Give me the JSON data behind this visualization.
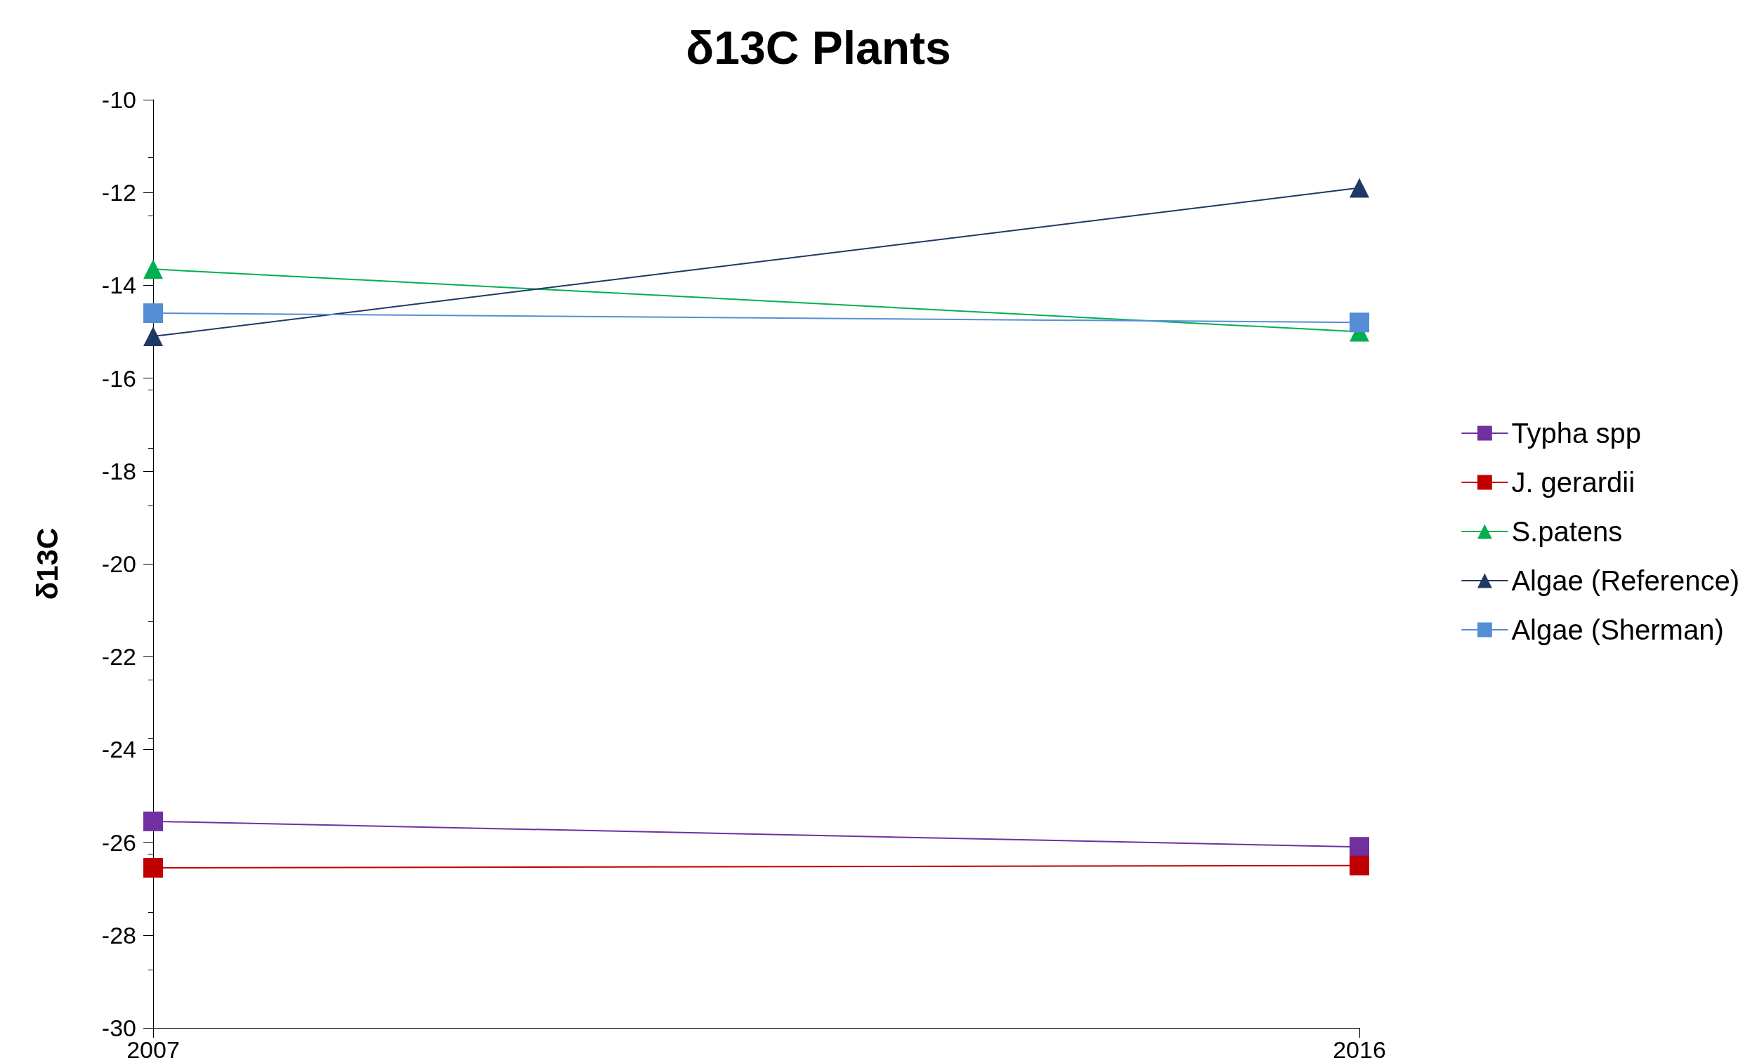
{
  "chart_data": {
    "type": "line",
    "title": "δ13C Plants",
    "ylabel": "δ13C",
    "x": [
      2007,
      2016
    ],
    "xlim": [
      2007,
      2016
    ],
    "xticks": [
      2007,
      2016
    ],
    "series": [
      {
        "name": "Typha spp",
        "color": "#7030a0",
        "marker": "square",
        "values": [
          -25.55,
          -26.1
        ]
      },
      {
        "name": "J. gerardii",
        "color": "#c00000",
        "marker": "square",
        "values": [
          -26.55,
          -26.5
        ]
      },
      {
        "name": "S.patens",
        "color": "#00b050",
        "marker": "triangle",
        "values": [
          -13.65,
          -15.0
        ]
      },
      {
        "name": "Algae (Reference)",
        "color": "#1f3864",
        "marker": "triangle",
        "values": [
          -15.1,
          -11.9
        ]
      },
      {
        "name": "Algae (Sherman)",
        "color": "#558ed5",
        "marker": "square",
        "values": [
          -14.6,
          -14.8
        ]
      }
    ],
    "ylim": [
      -30,
      -10
    ],
    "yticks": [
      -30,
      -28,
      -26,
      -24,
      -22,
      -20,
      -18,
      -16,
      -14,
      -12,
      -10
    ],
    "grid": false,
    "legend": "right"
  }
}
